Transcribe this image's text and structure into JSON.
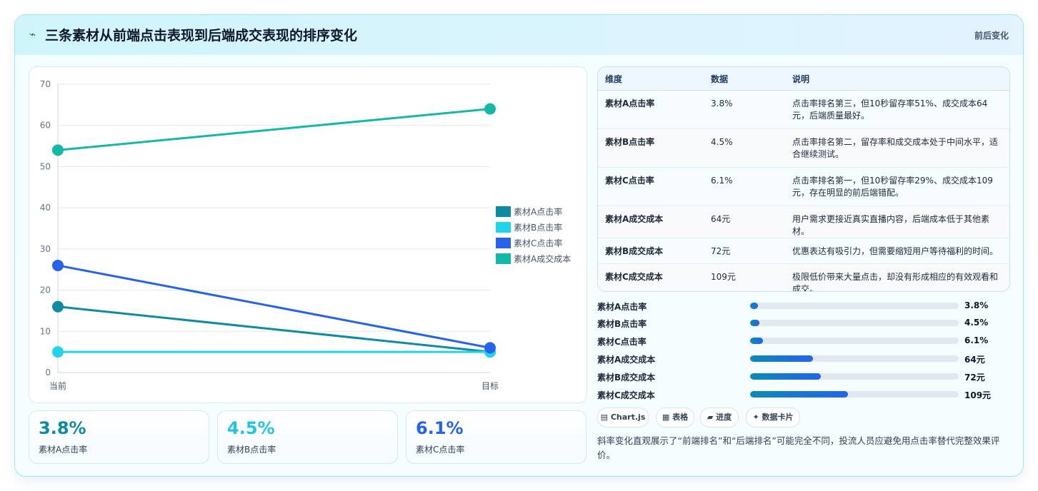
{
  "header": {
    "icon": "bolt-icon",
    "title": "三条素材从前端点击表现到后端成交表现的排序变化",
    "right_label": "前后变化"
  },
  "chart_data": {
    "type": "line",
    "x": [
      "当前",
      "目标"
    ],
    "ylim": [
      0,
      70
    ],
    "yticks": [
      0,
      10,
      20,
      30,
      40,
      50,
      60,
      70
    ],
    "grid": true,
    "legend_position": "right",
    "series": [
      {
        "name": "素材A点击率",
        "values": [
          16,
          5
        ],
        "color": "#0e8ba3"
      },
      {
        "name": "素材B点击率",
        "values": [
          5,
          5
        ],
        "color": "#22d3ee"
      },
      {
        "name": "素材C点击率",
        "values": [
          26,
          6
        ],
        "color": "#2563eb"
      },
      {
        "name": "素材A成交成本",
        "values": [
          54,
          64
        ],
        "color": "#14b8a6"
      }
    ]
  },
  "stats": [
    {
      "value": "3.8%",
      "label": "素材A点击率",
      "color": "#0e8ba3"
    },
    {
      "value": "4.5%",
      "label": "素材B点击率",
      "color": "#22c3e6"
    },
    {
      "value": "6.1%",
      "label": "素材C点击率",
      "color": "#2563eb"
    }
  ],
  "table": {
    "headers": [
      "维度",
      "数据",
      "说明"
    ],
    "rows": [
      [
        "素材A点击率",
        "3.8%",
        "点击率排名第三，但10秒留存率51%、成交成本64元，后端质量最好。"
      ],
      [
        "素材B点击率",
        "4.5%",
        "点击率排名第二，留存率和成交成本处于中间水平，适合继续测试。"
      ],
      [
        "素材C点击率",
        "6.1%",
        "点击率排名第一，但10秒留存率29%、成交成本109元，存在明显的前后端错配。"
      ],
      [
        "素材A成交成本",
        "64元",
        "用户需求更接近真实直播内容，后端成本低于其他素材。"
      ],
      [
        "素材B成交成本",
        "72元",
        "优惠表达有吸引力，但需要缩短用户等待福利的时间。"
      ],
      [
        "素材C成交成本",
        "109元",
        "极限低价带来大量点击，却没有形成相应的有效观看和成交。"
      ]
    ]
  },
  "progress": [
    {
      "label": "素材A点击率",
      "value": "3.8%",
      "percent": 3.8
    },
    {
      "label": "素材B点击率",
      "value": "4.5%",
      "percent": 4.5
    },
    {
      "label": "素材C点击率",
      "value": "6.1%",
      "percent": 6.1
    },
    {
      "label": "素材A成交成本",
      "value": "64元",
      "percent": 30
    },
    {
      "label": "素材B成交成本",
      "value": "72元",
      "percent": 34
    },
    {
      "label": "素材C成交成本",
      "value": "109元",
      "percent": 47
    }
  ],
  "chips": [
    {
      "label": "Chart.js",
      "icon": "chart-icon",
      "glyph": "▤"
    },
    {
      "label": "表格",
      "icon": "table-icon",
      "glyph": "▦"
    },
    {
      "label": "进度",
      "icon": "progress-icon",
      "glyph": "▰"
    },
    {
      "label": "数据卡片",
      "icon": "sparkle-icon",
      "glyph": "✦"
    }
  ],
  "note": "斜率变化直观展示了“前端排名”和“后端排名”可能完全不同，投流人员应避免用点击率替代完整效果评价。"
}
